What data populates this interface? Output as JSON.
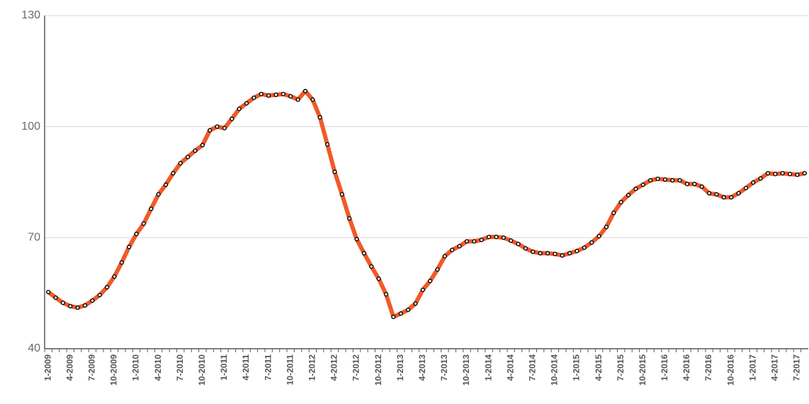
{
  "chart_data": {
    "type": "line",
    "categories": [
      "1-2009",
      null,
      null,
      "4-2009",
      null,
      null,
      "7-2009",
      null,
      null,
      "10-2009",
      null,
      null,
      "1-2010",
      null,
      null,
      "4-2010",
      null,
      null,
      "7-2010",
      null,
      null,
      "10-2010",
      null,
      null,
      "1-2011",
      null,
      null,
      "4-2011",
      null,
      null,
      "7-2011",
      null,
      null,
      "10-2011",
      null,
      null,
      "1-2012",
      null,
      null,
      "4-2012",
      null,
      null,
      "7-2012",
      null,
      null,
      "10-2012",
      null,
      null,
      "1-2013",
      null,
      null,
      "4-2013",
      null,
      null,
      "7-2013",
      null,
      null,
      "10-2013",
      null,
      null,
      "1-2014",
      null,
      null,
      "4-2014",
      null,
      null,
      "7-2014",
      null,
      null,
      "10-2014",
      null,
      null,
      "1-2015",
      null,
      null,
      "4-2015",
      null,
      null,
      "7-2015",
      null,
      null,
      "10-2015",
      null,
      null,
      "1-2016",
      null,
      null,
      "4-2016",
      null,
      null,
      "7-2016",
      null,
      null,
      "10-2016",
      null,
      null,
      "1-2017",
      null,
      null,
      "4-2017",
      null,
      null,
      "7-2017",
      null
    ],
    "values": [
      55.3,
      53.8,
      52.4,
      51.5,
      51.1,
      51.7,
      53.0,
      54.5,
      56.6,
      59.5,
      63.3,
      67.5,
      71.0,
      73.8,
      77.8,
      81.7,
      84.3,
      87.4,
      90.1,
      91.8,
      93.5,
      95.0,
      99.0,
      100.0,
      99.6,
      102.1,
      104.8,
      106.3,
      107.8,
      108.8,
      108.4,
      108.6,
      108.8,
      108.2,
      107.3,
      109.6,
      107.3,
      102.5,
      95.2,
      87.8,
      81.7,
      75.2,
      69.6,
      65.8,
      62.2,
      58.9,
      54.7,
      48.6,
      49.5,
      50.5,
      52.2,
      55.9,
      58.3,
      61.4,
      65.0,
      66.7,
      67.7,
      69.0,
      69.0,
      69.4,
      70.2,
      70.2,
      70.0,
      69.2,
      68.3,
      67.1,
      66.2,
      65.8,
      65.8,
      65.6,
      65.2,
      65.8,
      66.4,
      67.3,
      68.7,
      70.4,
      72.9,
      76.7,
      79.6,
      81.5,
      83.2,
      84.3,
      85.5,
      85.9,
      85.7,
      85.5,
      85.5,
      84.5,
      84.5,
      83.8,
      82.0,
      81.7,
      80.9,
      80.9,
      82.0,
      83.4,
      84.9,
      86.0,
      87.4,
      87.2,
      87.4,
      87.2,
      87.0,
      87.4
    ],
    "color": "#f05a28",
    "ylim": [
      40,
      130
    ],
    "yticks": [
      40,
      70,
      100,
      130
    ],
    "grid": true
  }
}
